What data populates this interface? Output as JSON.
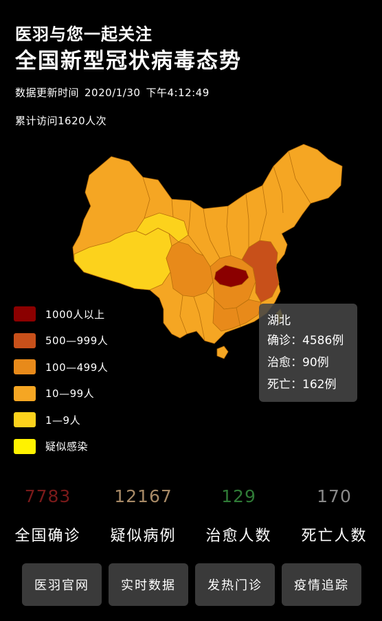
{
  "header": {
    "subtitle": "医羽与您一起关注",
    "title": "全国新型冠状病毒态势",
    "update_label": "数据更新时间",
    "update_date": "2020/1/30",
    "update_time": "下午4:12:49",
    "visits": "累计访问1620人次"
  },
  "legend": [
    {
      "label": "1000人以上",
      "color": "#8b0000"
    },
    {
      "label": "500—999人",
      "color": "#c8501a"
    },
    {
      "label": "100—499人",
      "color": "#e88a1a"
    },
    {
      "label": "10—99人",
      "color": "#f5a623"
    },
    {
      "label": "1—9人",
      "color": "#fcd21c"
    },
    {
      "label": "疑似感染",
      "color": "#fff200"
    }
  ],
  "tooltip": {
    "region": "湖北",
    "confirmed_label": "确诊：",
    "confirmed_value": "4586例",
    "cured_label": "治愈：",
    "cured_value": "90例",
    "death_label": "死亡：",
    "death_value": "162例"
  },
  "stats": [
    {
      "value": "7783",
      "label": "全国确诊",
      "color": "#7a1a1a"
    },
    {
      "value": "12167",
      "label": "疑似病例",
      "color": "#a88a66"
    },
    {
      "value": "129",
      "label": "治愈人数",
      "color": "#2f7a36"
    },
    {
      "value": "170",
      "label": "死亡人数",
      "color": "#8a8a8a"
    }
  ],
  "buttons": [
    {
      "label": "医羽官网"
    },
    {
      "label": "实时数据"
    },
    {
      "label": "发热门诊"
    },
    {
      "label": "疫情追踪"
    }
  ],
  "map_colors": {
    "base": "#f5a623",
    "light": "#fcd21c",
    "orange": "#e88a1a",
    "dark_orange": "#c8501a",
    "hubei": "#8b0000",
    "border": "#b86f0a"
  }
}
